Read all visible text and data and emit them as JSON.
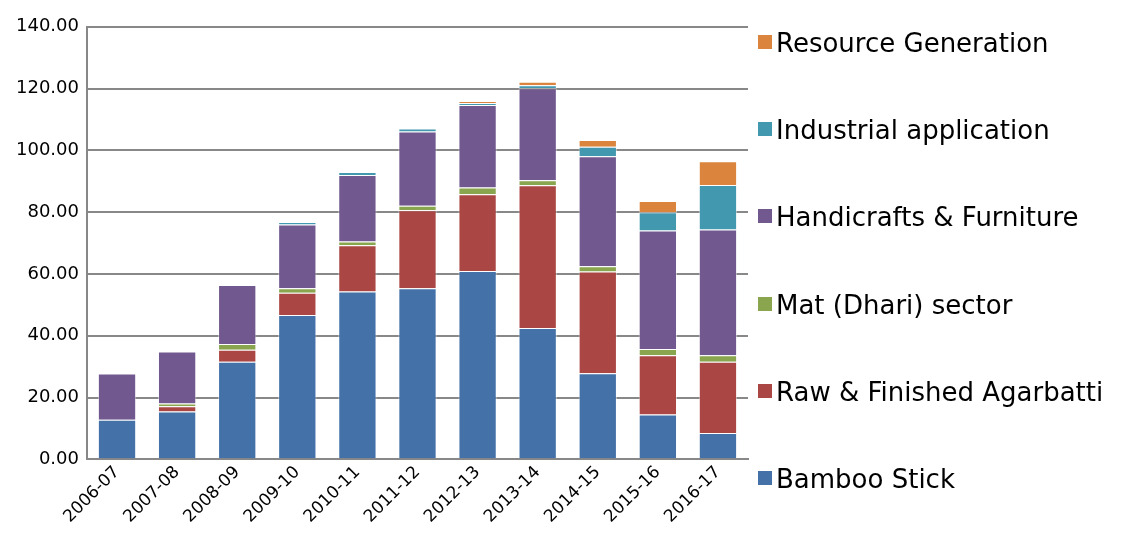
{
  "chart_data": {
    "type": "bar",
    "stacked": true,
    "categories": [
      "2006-07",
      "2007-08",
      "2008-09",
      "2009-10",
      "2010-11",
      "2011-12",
      "2012-13",
      "2013-14",
      "2014-15",
      "2015-16",
      "2016-17"
    ],
    "series": [
      {
        "name": "Bamboo Stick",
        "color": "#4472a8",
        "values": [
          12.8,
          15.5,
          31.6,
          46.7,
          54.3,
          55.4,
          61.0,
          42.5,
          27.9,
          14.5,
          8.5
        ]
      },
      {
        "name": "Raw & Finished Agarbatti",
        "color": "#aa4643",
        "values": [
          0,
          1.7,
          3.9,
          7.2,
          15.0,
          25.2,
          24.8,
          46.2,
          32.9,
          19.2,
          23.1
        ]
      },
      {
        "name": "Mat (Dhari) sector",
        "color": "#89a54e",
        "values": [
          0,
          0.9,
          1.8,
          1.5,
          1.2,
          1.5,
          2.2,
          1.6,
          1.7,
          2.0,
          2.1
        ]
      },
      {
        "name": "Handicrafts & Furniture",
        "color": "#71588f",
        "values": [
          15.0,
          16.8,
          19.1,
          20.6,
          21.5,
          24.0,
          26.7,
          29.8,
          35.6,
          38.4,
          40.7
        ]
      },
      {
        "name": "Industrial application",
        "color": "#4198af",
        "values": [
          0,
          0,
          0,
          0.8,
          1.0,
          1.0,
          0.6,
          1.0,
          3.1,
          5.9,
          14.4
        ]
      },
      {
        "name": "Resource Generation",
        "color": "#db843d",
        "values": [
          0,
          0,
          0,
          0,
          0,
          0,
          0.7,
          1.1,
          2.2,
          3.6,
          7.7
        ]
      }
    ],
    "ylim": [
      0,
      140
    ],
    "yticks": [
      {
        "value": 0,
        "label": "0.00"
      },
      {
        "value": 20,
        "label": "20.00"
      },
      {
        "value": 40,
        "label": "40.00"
      },
      {
        "value": 60,
        "label": "60.00"
      },
      {
        "value": 80,
        "label": "80.00"
      },
      {
        "value": 100,
        "label": "100.00"
      },
      {
        "value": 120,
        "label": "120.00"
      },
      {
        "value": 140,
        "label": "140.00"
      }
    ],
    "grid": "y",
    "legend": "right"
  }
}
